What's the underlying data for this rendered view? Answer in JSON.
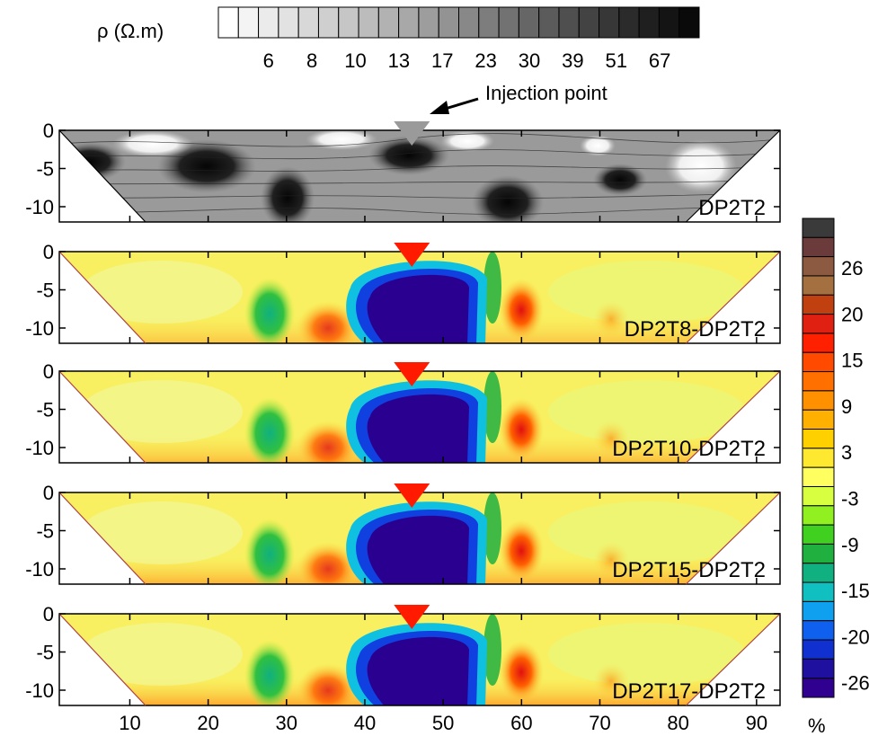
{
  "top_scale": {
    "label": "ρ (Ω.m)",
    "tick_labels": [
      "6",
      "8",
      "10",
      "13",
      "17",
      "23",
      "30",
      "39",
      "51",
      "67"
    ],
    "levels": [
      "#ffffff",
      "#f4f4f4",
      "#ebebeb",
      "#e2e2e2",
      "#d8d8d8",
      "#cfcfcf",
      "#c6c6c6",
      "#bcbcbc",
      "#b2b2b2",
      "#a8a8a8",
      "#9d9d9d",
      "#939393",
      "#888888",
      "#7d7d7d",
      "#727272",
      "#666666",
      "#5b5b5b",
      "#4f4f4f",
      "#434343",
      "#373737",
      "#2b2b2b",
      "#1f1f1f",
      "#141414",
      "#0a0a0a"
    ]
  },
  "injection": {
    "label": "Injection point",
    "x": 46
  },
  "axes": {
    "x_range": [
      1,
      93
    ],
    "y_range": [
      -12,
      0
    ],
    "x_ticks": [
      10,
      20,
      30,
      40,
      50,
      60,
      70,
      80,
      90
    ],
    "x_tick_labels": [
      "10",
      "20",
      "30",
      "40",
      "50",
      "60",
      "70",
      "80",
      "90"
    ],
    "y_ticks": [
      0,
      -5,
      -10
    ],
    "y_tick_labels": [
      "0",
      "-5",
      "-10"
    ]
  },
  "panels": [
    {
      "label": "DP2T2",
      "kind": "resistivity"
    },
    {
      "label": "DP2T8-DP2T2",
      "kind": "difference"
    },
    {
      "label": "DP2T10-DP2T2",
      "kind": "difference"
    },
    {
      "label": "DP2T15-DP2T2",
      "kind": "difference"
    },
    {
      "label": "DP2T17-DP2T2",
      "kind": "difference"
    }
  ],
  "colorbar": {
    "unit": "%",
    "tick_labels": [
      "26",
      "20",
      "15",
      "9",
      "3",
      "-3",
      "-9",
      "-15",
      "-20",
      "-26"
    ],
    "colors_top_to_bottom": [
      "#3a3a3a",
      "#6b3a3a",
      "#8c5a40",
      "#a57040",
      "#c04010",
      "#e02010",
      "#ff2000",
      "#ff4a00",
      "#ff7000",
      "#ff9000",
      "#ffb000",
      "#ffd000",
      "#ffe830",
      "#ffff60",
      "#d8ff40",
      "#90f020",
      "#40d020",
      "#20b040",
      "#10b080",
      "#10c0c0",
      "#10a0f0",
      "#1060f0",
      "#1030d0",
      "#2010a0",
      "#300090"
    ]
  }
}
